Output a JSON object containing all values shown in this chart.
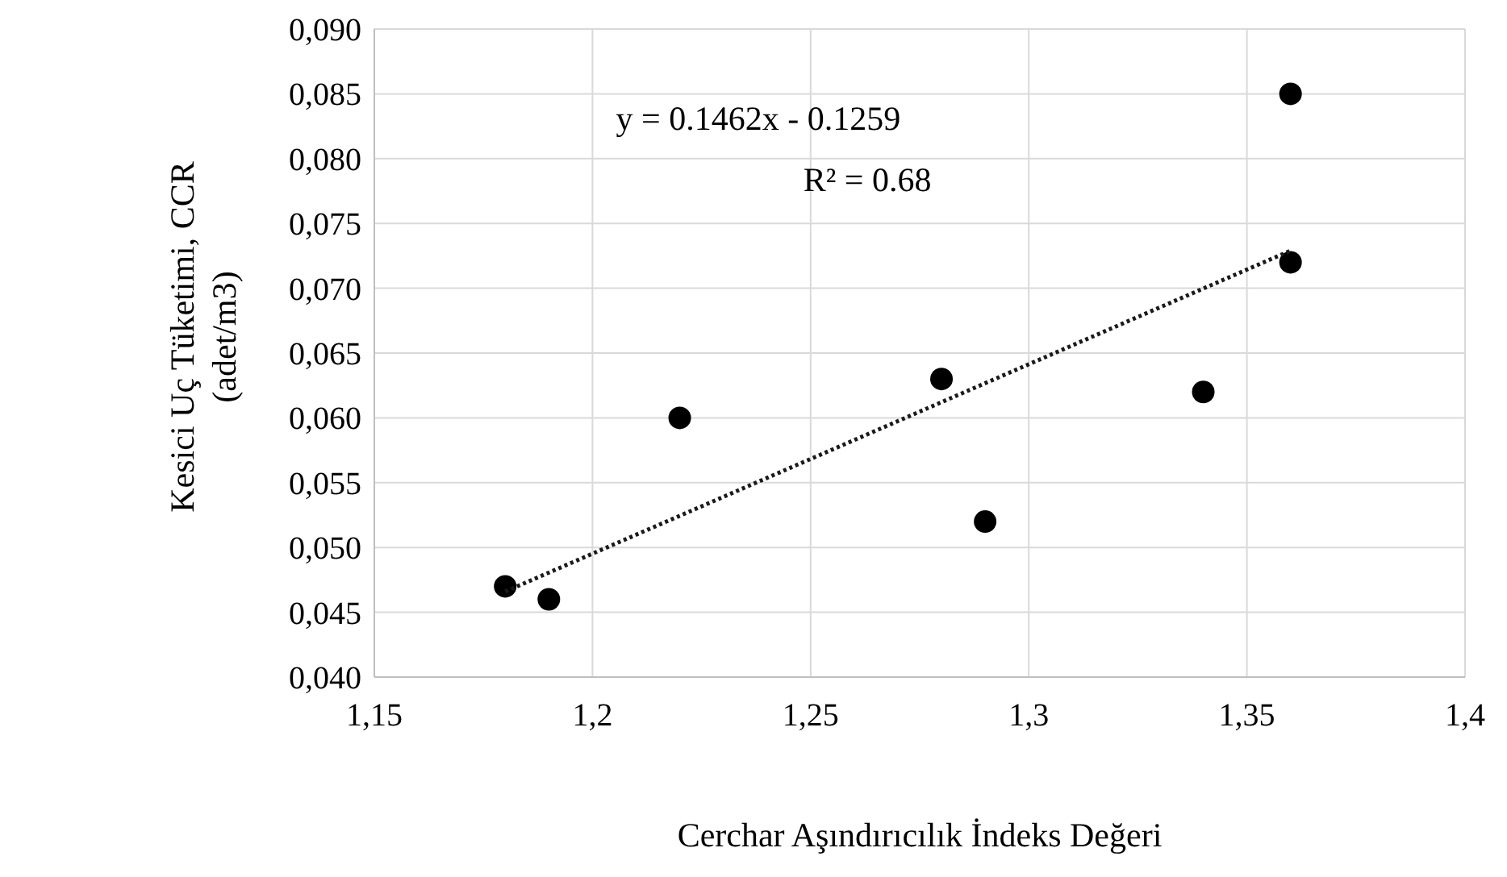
{
  "chart_data": {
    "type": "scatter",
    "xlabel": "Cerchar Aşındırıcılık  İndeks Değeri",
    "ylabel": "Kesici  Uç Tüketimi,  CCR\n(adet/m3)",
    "x": [
      1.18,
      1.19,
      1.22,
      1.28,
      1.29,
      1.34,
      1.36,
      1.36
    ],
    "series": [
      {
        "color": "#000000",
        "values": [
          0.047,
          0.046,
          0.06,
          0.063,
          0.052,
          0.062,
          0.072,
          0.085
        ]
      },
      {
        "type": "line",
        "color": "#1a1a1a",
        "line_style": "dotted",
        "marker": "none",
        "x": [
          1.18,
          1.36
        ],
        "values": [
          0.0466,
          0.0729
        ]
      }
    ],
    "xlim": [
      1.15,
      1.4
    ],
    "xticks": [
      {
        "value": 1.15,
        "label": "1,15"
      },
      {
        "value": 1.2,
        "label": "1,2"
      },
      {
        "value": 1.25,
        "label": "1,25"
      },
      {
        "value": 1.3,
        "label": "1,3"
      },
      {
        "value": 1.35,
        "label": "1,35"
      },
      {
        "value": 1.4,
        "label": "1,4"
      }
    ],
    "ylim": [
      0.04,
      0.09
    ],
    "yticks": [
      {
        "value": 0.04,
        "label": "0,040"
      },
      {
        "value": 0.045,
        "label": "0,045"
      },
      {
        "value": 0.05,
        "label": "0,050"
      },
      {
        "value": 0.055,
        "label": "0,055"
      },
      {
        "value": 0.06,
        "label": "0,060"
      },
      {
        "value": 0.065,
        "label": "0,065"
      },
      {
        "value": 0.07,
        "label": "0,070"
      },
      {
        "value": 0.075,
        "label": "0,075"
      },
      {
        "value": 0.08,
        "label": "0,080"
      },
      {
        "value": 0.085,
        "label": "0,085"
      },
      {
        "value": 0.09,
        "label": "0,090"
      }
    ],
    "grid": true,
    "marker": "circle",
    "annotations": [
      "y = 0.1462x - 0.1259",
      "R² = 0.68"
    ]
  }
}
